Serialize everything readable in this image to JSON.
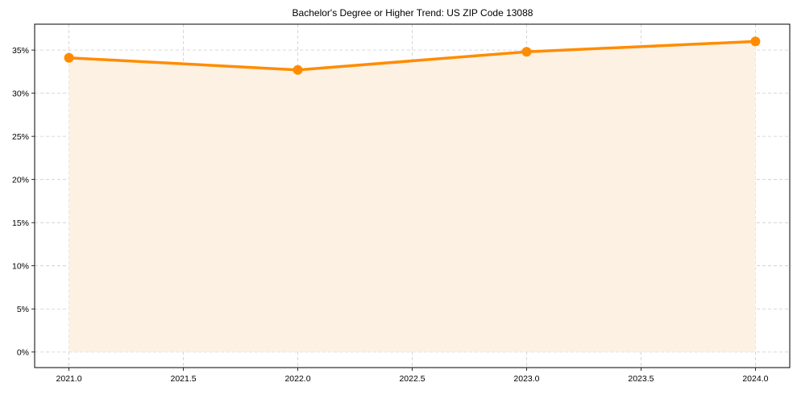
{
  "chart_data": {
    "type": "line",
    "title": "Bachelor's Degree or Higher Trend: US ZIP Code 13088",
    "xlabel": "",
    "ylabel": "",
    "x": [
      2021,
      2022,
      2023,
      2024
    ],
    "series": [
      {
        "name": "Bachelor's Degree or Higher",
        "values": [
          34.1,
          32.7,
          34.8,
          36.0
        ],
        "color": "#ff8c00",
        "marker": "circle",
        "fill_under": true,
        "fill_color": "#fdf1e3"
      }
    ],
    "xlim": [
      2020.85,
      2024.15
    ],
    "ylim": [
      -1.8,
      38.0
    ],
    "x_ticks": [
      2021.0,
      2021.5,
      2022.0,
      2022.5,
      2023.0,
      2023.5,
      2024.0
    ],
    "x_tick_labels": [
      "2021.0",
      "2021.5",
      "2022.0",
      "2022.5",
      "2023.0",
      "2023.5",
      "2024.0"
    ],
    "y_ticks": [
      0,
      5,
      10,
      15,
      20,
      25,
      30,
      35
    ],
    "y_tick_labels": [
      "0%",
      "5%",
      "10%",
      "15%",
      "20%",
      "25%",
      "30%",
      "35%"
    ],
    "grid": true,
    "grid_style": "dashed",
    "legend": null
  }
}
